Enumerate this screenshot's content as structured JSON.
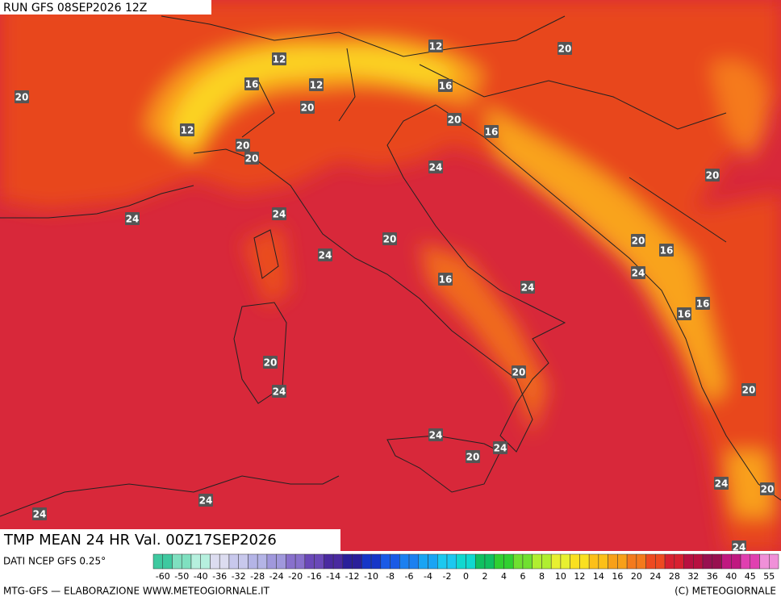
{
  "header": {
    "run": "RUN GFS 08SEP2026 12Z"
  },
  "map": {
    "product": "TMP MEAN 24 HR Val. 00Z17SEP2026",
    "contour_labels": [
      12,
      12,
      20,
      16,
      12,
      16,
      20,
      20,
      20,
      16,
      12,
      20,
      20,
      24,
      20,
      24,
      24,
      20,
      20,
      16,
      24,
      24,
      16,
      24,
      16,
      16,
      20,
      20,
      24,
      20,
      24,
      24,
      20,
      24,
      20,
      24,
      24,
      24
    ]
  },
  "colorbar": {
    "source": "DATI NCEP GFS 0.25°",
    "labels": [
      "-60",
      "-50",
      "-40",
      "-36",
      "-32",
      "-28",
      "-24",
      "-20",
      "-16",
      "-14",
      "-12",
      "-10",
      "-8",
      "-6",
      "-4",
      "-2",
      "0",
      "2",
      "4",
      "6",
      "8",
      "10",
      "12",
      "14",
      "16",
      "20",
      "24",
      "28",
      "32",
      "36",
      "40",
      "45",
      "55"
    ],
    "colors": [
      "#3fc9a0",
      "#7fe0c0",
      "#b6f0de",
      "#dcdcf0",
      "#c8c8ec",
      "#b4b4e6",
      "#a098dc",
      "#8870cc",
      "#6a48b8",
      "#4a2aa0",
      "#2a1f9a",
      "#1636c8",
      "#1a5ae6",
      "#1c80f0",
      "#1aa4f4",
      "#1cc8f0",
      "#10d8d0",
      "#10c060",
      "#30d030",
      "#70e030",
      "#b0ee30",
      "#e8f030",
      "#fae020",
      "#fcc018",
      "#f8a018",
      "#f47a1c",
      "#ee4a20",
      "#d82030",
      "#b81040",
      "#981050",
      "#c01880",
      "#e040b0",
      "#f090d8"
    ]
  },
  "footer": {
    "left": "MTG-GFS — ELABORAZIONE WWW.METEOGIORNALE.IT",
    "right": "(C) METEOGIORNALE"
  }
}
